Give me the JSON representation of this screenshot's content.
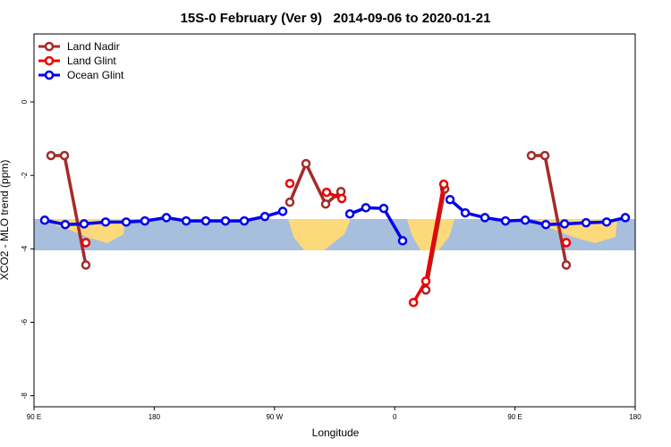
{
  "chart_data": {
    "type": "line",
    "title": "15S-0 February (Ver 9)   2014-09-06 to 2020-01-21",
    "xlabel": "Longitude",
    "ylabel": "XCO2 - MLO trend (ppm)",
    "xlim": [
      90,
      540
    ],
    "xticks": [
      {
        "value": 90,
        "label": "90 E"
      },
      {
        "value": 180,
        "label": "180"
      },
      {
        "value": 270,
        "label": "90 W"
      },
      {
        "value": 360,
        "label": "0"
      },
      {
        "value": 450,
        "label": "90 E"
      },
      {
        "value": 540,
        "label": "180"
      }
    ],
    "ylim": [
      -8.3,
      1.85
    ],
    "yticks": [
      0,
      -2,
      -4,
      -6,
      -8
    ],
    "legend": "top-left",
    "series": [
      {
        "name": "Land Nadir",
        "color": "#a52a2a",
        "x": [
          102.7,
          112.8,
          128.8,
          null,
          281.5,
          293.6,
          308.3,
          319.7,
          null,
          383.3,
          397.4,
          null,
          462.3,
          472.4,
          488.4
        ],
        "values": [
          -1.46,
          -1.46,
          -4.44,
          null,
          -2.73,
          -1.68,
          -2.78,
          -2.44,
          null,
          -5.12,
          -2.37,
          null,
          -1.46,
          -1.46,
          -4.44
        ]
      },
      {
        "name": "Land Glint",
        "color": "#ee0000",
        "x": [
          128.8,
          null,
          281.5,
          null,
          309.0,
          320.4,
          null,
          374.0,
          383.3,
          396.7,
          null,
          488.4
        ],
        "values": [
          -3.83,
          null,
          -2.22,
          null,
          -2.46,
          -2.63,
          null,
          -5.46,
          -4.88,
          -2.24,
          null,
          -3.83
        ]
      },
      {
        "name": "Ocean Glint",
        "color": "#0000ee",
        "x": [
          98.0,
          113.4,
          127.5,
          143.6,
          159.0,
          173.0,
          189.1,
          203.9,
          218.6,
          233.3,
          247.4,
          262.8,
          276.2,
          null,
          326.4,
          338.4,
          351.8,
          365.9,
          null,
          401.4,
          412.8,
          427.5,
          442.9,
          457.7,
          473.1,
          487.1,
          503.2,
          518.6,
          532.6
        ],
        "values": [
          -3.22,
          -3.34,
          -3.32,
          -3.27,
          -3.27,
          -3.24,
          -3.15,
          -3.24,
          -3.24,
          -3.24,
          -3.24,
          -3.12,
          -2.98,
          null,
          -3.05,
          -2.88,
          -2.9,
          -3.78,
          null,
          -2.66,
          -3.02,
          -3.15,
          -3.24,
          -3.22,
          -3.34,
          -3.32,
          -3.29,
          -3.27,
          -3.15
        ]
      }
    ]
  }
}
